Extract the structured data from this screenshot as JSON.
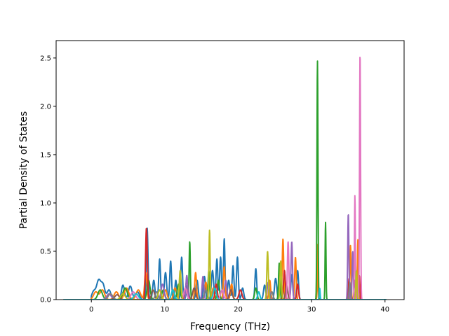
{
  "chart_data": {
    "type": "line",
    "xlabel": "Frequency (THz)",
    "ylabel": "Partial Density of States",
    "xlim": [
      -4.8,
      42.6
    ],
    "ylim": [
      0,
      2.68
    ],
    "xticks": [
      0,
      10,
      20,
      30,
      40
    ],
    "xtick_labels": [
      "0",
      "10",
      "20",
      "30",
      "40"
    ],
    "yticks": [
      0.0,
      0.5,
      1.0,
      1.5,
      2.0,
      2.5
    ],
    "ytick_labels": [
      "0.0",
      "0.5",
      "1.0",
      "1.5",
      "2.0",
      "2.5"
    ],
    "grid": false,
    "legend": "none",
    "x_range": [
      -3.8,
      40.2
    ],
    "series": [
      {
        "color": "#1f77b4",
        "peaks": [
          [
            0.3,
            0.08,
            0.25
          ],
          [
            1.0,
            0.2,
            0.3
          ],
          [
            1.6,
            0.14,
            0.25
          ],
          [
            2.4,
            0.1,
            0.25
          ],
          [
            4.3,
            0.15,
            0.2
          ],
          [
            5.3,
            0.14,
            0.25
          ],
          [
            6.3,
            0.08,
            0.25
          ],
          [
            7.6,
            0.74,
            0.12
          ],
          [
            8.5,
            0.2,
            0.15
          ],
          [
            9.3,
            0.42,
            0.12
          ],
          [
            10.1,
            0.28,
            0.15
          ],
          [
            10.8,
            0.4,
            0.12
          ],
          [
            11.5,
            0.2,
            0.12
          ],
          [
            12.3,
            0.44,
            0.12
          ],
          [
            13.1,
            0.15,
            0.15
          ],
          [
            14.4,
            0.2,
            0.15
          ],
          [
            15.4,
            0.24,
            0.15
          ],
          [
            16.5,
            0.3,
            0.15
          ],
          [
            17.1,
            0.42,
            0.12
          ],
          [
            17.6,
            0.44,
            0.12
          ],
          [
            18.1,
            0.63,
            0.1
          ],
          [
            18.7,
            0.2,
            0.15
          ],
          [
            19.3,
            0.35,
            0.12
          ],
          [
            19.9,
            0.44,
            0.12
          ],
          [
            20.6,
            0.12,
            0.15
          ],
          [
            22.4,
            0.32,
            0.12
          ],
          [
            23.6,
            0.15,
            0.15
          ],
          [
            25.1,
            0.22,
            0.15
          ],
          [
            26.3,
            0.3,
            0.12
          ],
          [
            27.3,
            0.26,
            0.12
          ],
          [
            28.1,
            0.3,
            0.12
          ],
          [
            36.3,
            0.45,
            0.08
          ]
        ]
      },
      {
        "color": "#ff7f0e",
        "peaks": [
          [
            0.6,
            0.08,
            0.3
          ],
          [
            1.5,
            0.1,
            0.3
          ],
          [
            3.4,
            0.08,
            0.3
          ],
          [
            4.8,
            0.12,
            0.3
          ],
          [
            6.4,
            0.1,
            0.3
          ],
          [
            7.4,
            0.28,
            0.15
          ],
          [
            10.1,
            0.1,
            0.2
          ],
          [
            11.4,
            0.12,
            0.2
          ],
          [
            13.0,
            0.1,
            0.2
          ],
          [
            14.2,
            0.28,
            0.12
          ],
          [
            15.6,
            0.18,
            0.15
          ],
          [
            16.6,
            0.12,
            0.15
          ],
          [
            18.1,
            0.34,
            0.12
          ],
          [
            19.1,
            0.16,
            0.15
          ],
          [
            24.3,
            0.2,
            0.12
          ],
          [
            26.1,
            0.63,
            0.1
          ],
          [
            27.8,
            0.44,
            0.1
          ],
          [
            30.8,
            0.57,
            0.05
          ],
          [
            35.3,
            0.56,
            0.08
          ],
          [
            36.3,
            0.62,
            0.06
          ]
        ]
      },
      {
        "color": "#2ca02c",
        "peaks": [
          [
            1.2,
            0.1,
            0.3
          ],
          [
            4.6,
            0.12,
            0.3
          ],
          [
            7.8,
            0.2,
            0.2
          ],
          [
            9.8,
            0.1,
            0.2
          ],
          [
            11.9,
            0.16,
            0.2
          ],
          [
            13.4,
            0.6,
            0.08
          ],
          [
            16.0,
            0.3,
            0.1
          ],
          [
            17.3,
            0.2,
            0.15
          ],
          [
            22.4,
            0.12,
            0.15
          ],
          [
            25.6,
            0.38,
            0.1
          ],
          [
            30.8,
            2.47,
            0.07
          ],
          [
            31.9,
            0.8,
            0.06
          ]
        ]
      },
      {
        "color": "#d62728",
        "peaks": [
          [
            7.5,
            0.74,
            0.12
          ],
          [
            13.0,
            0.2,
            0.15
          ],
          [
            17.0,
            0.16,
            0.15
          ],
          [
            20.3,
            0.1,
            0.2
          ],
          [
            26.3,
            0.3,
            0.12
          ],
          [
            28.1,
            0.16,
            0.12
          ],
          [
            35.1,
            0.22,
            0.08
          ],
          [
            36.5,
            0.25,
            0.08
          ]
        ]
      },
      {
        "color": "#9467bd",
        "peaks": [
          [
            2.4,
            0.06,
            0.3
          ],
          [
            9.7,
            0.16,
            0.2
          ],
          [
            13.0,
            0.25,
            0.12
          ],
          [
            15.2,
            0.24,
            0.12
          ],
          [
            18.3,
            0.2,
            0.15
          ],
          [
            24.1,
            0.18,
            0.15
          ],
          [
            27.3,
            0.6,
            0.1
          ],
          [
            35.0,
            0.89,
            0.08
          ],
          [
            35.6,
            0.5,
            0.08
          ]
        ]
      },
      {
        "color": "#8c564b",
        "peaks": [
          [
            3.5,
            0.05,
            0.3
          ],
          [
            8.4,
            0.1,
            0.2
          ],
          [
            14.0,
            0.12,
            0.2
          ],
          [
            19.0,
            0.1,
            0.2
          ],
          [
            26.6,
            0.15,
            0.15
          ],
          [
            35.9,
            0.2,
            0.1
          ]
        ]
      },
      {
        "color": "#e377c2",
        "peaks": [
          [
            5.7,
            0.08,
            0.3
          ],
          [
            12.8,
            0.12,
            0.2
          ],
          [
            17.8,
            0.1,
            0.2
          ],
          [
            26.8,
            0.6,
            0.1
          ],
          [
            35.9,
            1.08,
            0.06
          ],
          [
            36.6,
            2.56,
            0.07
          ]
        ]
      },
      {
        "color": "#7f7f7f",
        "peaks": [
          [
            2.6,
            0.06,
            0.3
          ],
          [
            8.9,
            0.08,
            0.2
          ],
          [
            15.6,
            0.1,
            0.2
          ],
          [
            24.6,
            0.08,
            0.15
          ],
          [
            35.2,
            0.18,
            0.1
          ]
        ]
      },
      {
        "color": "#bcbd22",
        "peaks": [
          [
            4.3,
            0.06,
            0.3
          ],
          [
            9.3,
            0.1,
            0.2
          ],
          [
            12.1,
            0.3,
            0.12
          ],
          [
            16.1,
            0.72,
            0.08
          ],
          [
            24.0,
            0.5,
            0.1
          ],
          [
            25.8,
            0.4,
            0.1
          ],
          [
            36.1,
            0.3,
            0.08
          ]
        ]
      },
      {
        "color": "#17becf",
        "peaks": [
          [
            6.1,
            0.06,
            0.3
          ],
          [
            11.1,
            0.1,
            0.2
          ],
          [
            16.8,
            0.12,
            0.2
          ],
          [
            22.8,
            0.08,
            0.15
          ],
          [
            31.1,
            0.12,
            0.06
          ]
        ]
      }
    ]
  }
}
